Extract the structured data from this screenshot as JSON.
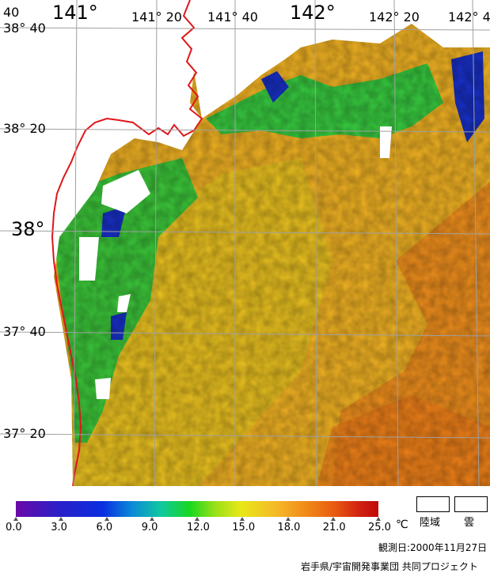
{
  "map": {
    "lon_labels": [
      {
        "text": "141°",
        "size": "big"
      },
      {
        "text": "141° 20",
        "size": "sm"
      },
      {
        "text": "141° 40",
        "size": "sm"
      },
      {
        "text": "142°",
        "size": "big"
      },
      {
        "text": "142° 20",
        "size": "sm"
      },
      {
        "text": "142° 4",
        "size": "sm"
      }
    ],
    "lat_labels": [
      {
        "text": "38° 40",
        "size": "sm"
      },
      {
        "text": "38° 20",
        "size": "sm"
      },
      {
        "text": "38°",
        "size": "big"
      },
      {
        "text": "37° 40",
        "size": "sm"
      },
      {
        "text": "37° 20",
        "size": "sm"
      }
    ],
    "corner_label": "40",
    "colors": {
      "land": "#ffffff",
      "cloud": "#ffffff",
      "coast": "#e0161a",
      "grid": "#a0a0a0",
      "sea_warm": "#f3b423",
      "sea_mid": "#e6d020",
      "sea_hot": "#f08a1e"
    }
  },
  "colorbar": {
    "ticks": [
      "0.0",
      "3.0",
      "6.0",
      "9.0",
      "12.0",
      "15.0",
      "18.0",
      "21.0",
      "25.0"
    ],
    "unit": "℃"
  },
  "legend": {
    "land_label": "陸域",
    "cloud_label": "雲"
  },
  "footer": {
    "observation_date": "観測日:2000年11月27日",
    "credit": "岩手県/宇宙開発事業団 共同プロジェクト"
  }
}
